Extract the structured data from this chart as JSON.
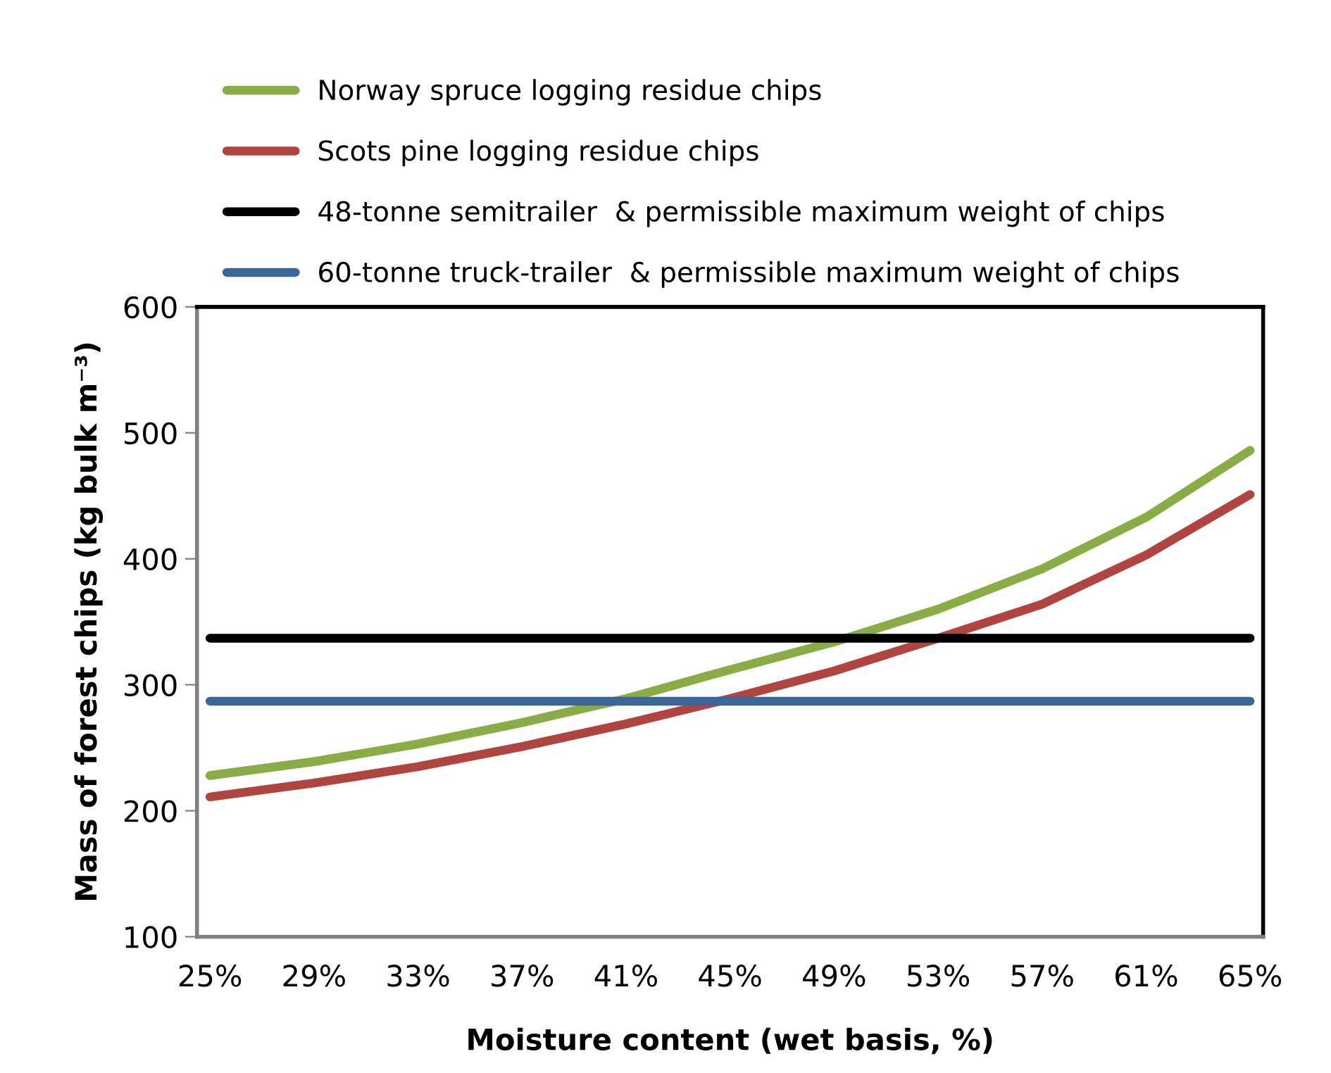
{
  "chart_data": {
    "type": "line",
    "xlabel": "Moisture content (wet basis, %)",
    "ylabel": "Mass of forest chips (kg bulk m⁻³)",
    "x": [
      25,
      29,
      33,
      37,
      41,
      45,
      49,
      53,
      57,
      61,
      65
    ],
    "series": [
      {
        "name": "Norway spruce logging residue chips",
        "color": "#8aac46",
        "values": [
          228,
          239,
          253,
          270,
          289,
          312,
          334,
          360,
          392,
          433,
          486
        ]
      },
      {
        "name": "Scots pine logging residue chips",
        "color": "#b04441",
        "values": [
          211,
          222,
          235,
          251,
          269,
          289,
          311,
          337,
          364,
          403,
          451
        ]
      },
      {
        "name": "48-tonne semitrailer  & permissible maximum weight of chips",
        "color": "#000000",
        "values": [
          337,
          337,
          337,
          337,
          337,
          337,
          337,
          337,
          337,
          337,
          337
        ]
      },
      {
        "name": "60-tonne truck-trailer  & permissible maximum weight of chips",
        "color": "#3b6497",
        "values": [
          287,
          287,
          287,
          287,
          287,
          287,
          287,
          287,
          287,
          287,
          287
        ]
      }
    ],
    "xlim": [
      24.5,
      65.5
    ],
    "xticks": [
      {
        "value": 25,
        "label": "25%"
      },
      {
        "value": 29,
        "label": "29%"
      },
      {
        "value": 33,
        "label": "33%"
      },
      {
        "value": 37,
        "label": "37%"
      },
      {
        "value": 41,
        "label": "41%"
      },
      {
        "value": 45,
        "label": "45%"
      },
      {
        "value": 49,
        "label": "49%"
      },
      {
        "value": 53,
        "label": "53%"
      },
      {
        "value": 57,
        "label": "57%"
      },
      {
        "value": 61,
        "label": "61%"
      },
      {
        "value": 65,
        "label": "65%"
      }
    ],
    "ylim": [
      100,
      600
    ],
    "yticks": [
      100,
      200,
      300,
      400,
      500,
      600
    ],
    "grid": false,
    "legend": "top",
    "line_style": "solid"
  }
}
